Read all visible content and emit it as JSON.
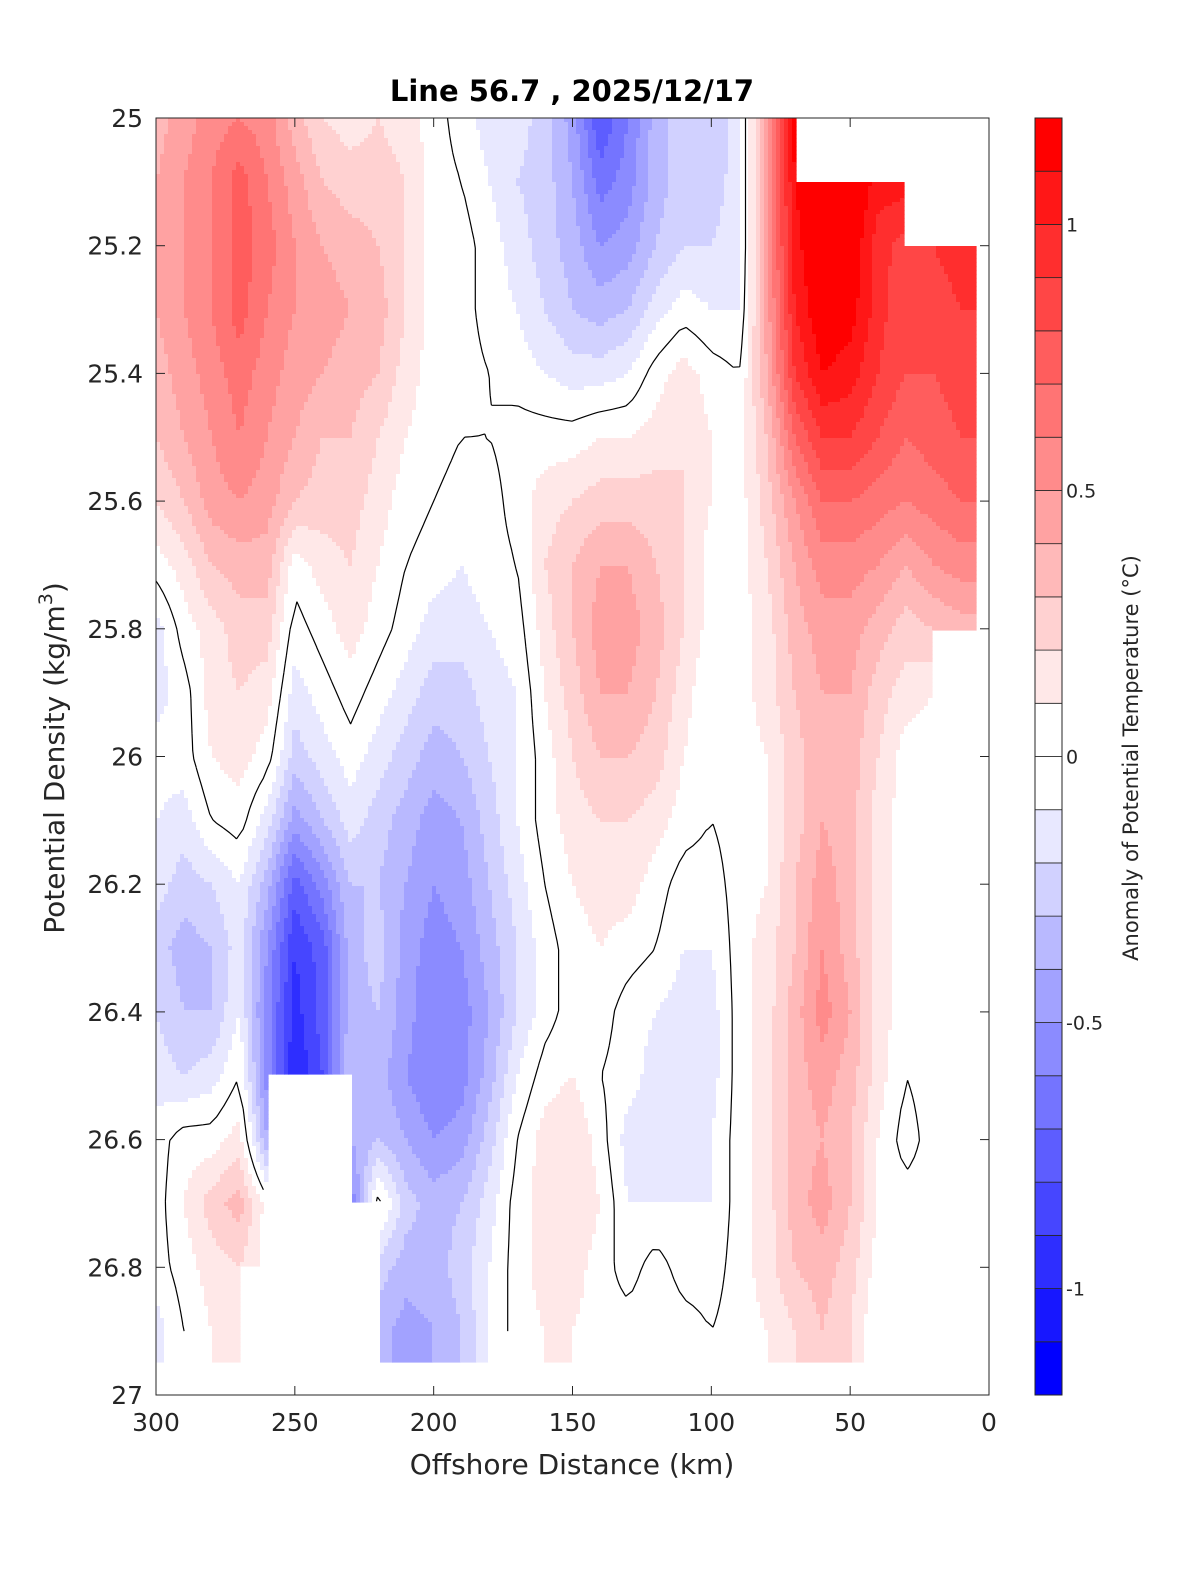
{
  "chart_data": {
    "type": "heatmap",
    "subtype": "filled-contour",
    "title": "Line 56.7 , 2025/12/17",
    "xlabel": "Offshore Distance (km)",
    "ylabel": "Potential Density (kg/m",
    "ylabel_superscript": "3",
    "ylabel_suffix": ")",
    "xlim": [
      300,
      0
    ],
    "ylim": [
      27,
      25
    ],
    "xticks": [
      "300",
      "250",
      "200",
      "150",
      "100",
      "50",
      "0"
    ],
    "xtick_values": [
      300,
      250,
      200,
      150,
      100,
      50,
      0
    ],
    "yticks": [
      "25",
      "25.2",
      "25.4",
      "25.6",
      "25.8",
      "26",
      "26.2",
      "26.4",
      "26.6",
      "26.8",
      "27"
    ],
    "ytick_values": [
      25,
      25.2,
      25.4,
      25.6,
      25.8,
      26,
      26.2,
      26.4,
      26.6,
      26.8,
      27
    ],
    "colorbar": {
      "label": "Anomaly of Potential Temperature (°C)",
      "range": [
        -1.2,
        1.2
      ],
      "level_step": 0.1,
      "ticks": [
        "1",
        "0.5",
        "0",
        "-0.5",
        "-1"
      ],
      "tick_values": [
        1,
        0.5,
        0,
        -0.5,
        -1
      ],
      "min_color": "#0000ff",
      "mid_color": "#ffffff",
      "max_color": "#ff0000"
    },
    "contour_levels": [
      0
    ],
    "contour_color": "#000000",
    "x": [
      300,
      290,
      280,
      270,
      260,
      250,
      240,
      230,
      220,
      210,
      200,
      190,
      180,
      170,
      160,
      150,
      140,
      130,
      120,
      110,
      100,
      90,
      80,
      70,
      60,
      50,
      40,
      30,
      20,
      10
    ],
    "y": [
      25.0,
      25.1,
      25.2,
      25.3,
      25.4,
      25.5,
      25.6,
      25.7,
      25.8,
      25.9,
      26.0,
      26.1,
      26.2,
      26.3,
      26.4,
      26.5,
      26.6,
      26.7,
      26.8,
      26.9
    ],
    "z_by_x": [
      [
        0.35,
        0.4,
        0.4,
        0.4,
        0.35,
        0.3,
        0.2,
        0.05,
        -0.15,
        -0.15,
        -0.05,
        -0.1,
        -0.15,
        -0.25,
        -0.2,
        -0.15,
        -0.05,
        -0.05,
        -0.05,
        -0.15
      ],
      [
        0.45,
        0.5,
        0.5,
        0.5,
        0.45,
        0.4,
        0.3,
        0.15,
        0.05,
        -0.05,
        -0.05,
        -0.15,
        -0.25,
        -0.35,
        -0.3,
        -0.2,
        0.05,
        0.1,
        0.05,
        0.0
      ],
      [
        0.55,
        0.6,
        0.6,
        0.6,
        0.55,
        0.5,
        0.45,
        0.3,
        0.15,
        0.15,
        0.1,
        0.0,
        -0.2,
        -0.3,
        -0.3,
        -0.15,
        0.05,
        0.25,
        0.15,
        0.1
      ],
      [
        0.6,
        0.75,
        0.75,
        0.75,
        0.65,
        0.6,
        0.5,
        0.35,
        0.25,
        0.2,
        0.15,
        0.05,
        -0.1,
        -0.15,
        -0.1,
        0.0,
        0.15,
        0.35,
        0.2,
        0.15
      ],
      [
        0.55,
        0.6,
        0.65,
        0.6,
        0.55,
        0.5,
        0.45,
        0.35,
        0.25,
        0.15,
        0.05,
        -0.15,
        -0.35,
        -0.5,
        -0.55,
        -0.55,
        -0.4,
        0.05,
        0.05,
        null
      ],
      [
        0.35,
        0.45,
        0.5,
        0.5,
        0.45,
        0.4,
        0.3,
        0.05,
        -0.05,
        -0.15,
        -0.25,
        -0.45,
        -0.75,
        -0.9,
        -0.95,
        -1.0,
        null,
        null,
        null,
        null
      ],
      [
        0.2,
        0.3,
        0.4,
        0.45,
        0.4,
        0.3,
        0.25,
        0.15,
        0.05,
        -0.05,
        -0.15,
        -0.3,
        -0.55,
        -0.75,
        -0.75,
        -0.8,
        null,
        null,
        null,
        null
      ],
      [
        0.15,
        0.25,
        0.35,
        0.4,
        0.35,
        0.3,
        0.25,
        0.2,
        0.15,
        0.05,
        -0.05,
        -0.15,
        -0.3,
        -0.35,
        -0.35,
        -0.3,
        -0.4,
        -0.6,
        null,
        null
      ],
      [
        0.2,
        0.25,
        0.3,
        0.35,
        0.3,
        0.2,
        0.15,
        0.1,
        0.05,
        -0.05,
        -0.15,
        -0.25,
        -0.3,
        -0.25,
        -0.3,
        -0.35,
        -0.3,
        0.05,
        -0.25,
        -0.35
      ],
      [
        0.15,
        0.2,
        0.2,
        0.2,
        0.15,
        0.1,
        0.05,
        0.0,
        -0.05,
        -0.15,
        -0.25,
        -0.35,
        -0.4,
        -0.45,
        -0.45,
        -0.5,
        -0.4,
        -0.25,
        -0.35,
        -0.45
      ],
      [
        0.05,
        0.05,
        0.05,
        0.05,
        0.05,
        0.05,
        0.0,
        -0.05,
        -0.15,
        -0.25,
        -0.35,
        -0.45,
        -0.5,
        -0.55,
        -0.6,
        -0.6,
        -0.5,
        -0.35,
        -0.35,
        -0.4
      ],
      [
        -0.05,
        0.0,
        0.05,
        0.05,
        0.05,
        0.0,
        -0.05,
        -0.1,
        -0.15,
        -0.25,
        -0.3,
        -0.4,
        -0.45,
        -0.5,
        -0.55,
        -0.55,
        -0.45,
        -0.3,
        -0.25,
        -0.3
      ],
      [
        -0.15,
        -0.1,
        -0.05,
        -0.05,
        0.0,
        0.0,
        -0.05,
        -0.05,
        -0.1,
        -0.15,
        -0.2,
        -0.25,
        -0.3,
        -0.35,
        -0.4,
        -0.35,
        -0.25,
        -0.15,
        -0.1,
        -0.1
      ],
      [
        -0.15,
        -0.2,
        -0.15,
        -0.1,
        -0.05,
        0.05,
        0.05,
        0.0,
        -0.05,
        -0.1,
        -0.1,
        -0.1,
        -0.15,
        -0.2,
        -0.2,
        -0.1,
        0.0,
        0.05,
        0.05,
        0.05
      ],
      [
        -0.25,
        -0.25,
        -0.25,
        -0.2,
        -0.1,
        0.05,
        0.15,
        0.2,
        0.15,
        0.1,
        0.05,
        0.05,
        0.0,
        -0.05,
        -0.05,
        0.05,
        0.15,
        0.15,
        0.15,
        0.1
      ],
      [
        -0.45,
        -0.4,
        -0.35,
        -0.3,
        -0.15,
        0.05,
        0.2,
        0.3,
        0.3,
        0.25,
        0.2,
        0.15,
        0.1,
        0.05,
        0.05,
        0.1,
        0.2,
        0.2,
        0.15,
        0.1
      ],
      [
        -0.8,
        -0.65,
        -0.5,
        -0.35,
        -0.15,
        0.1,
        0.25,
        0.4,
        0.45,
        0.4,
        0.3,
        0.2,
        0.15,
        0.1,
        0.05,
        0.0,
        0.05,
        0.1,
        0.05,
        0.05
      ],
      [
        -0.6,
        -0.55,
        -0.45,
        -0.3,
        -0.1,
        0.1,
        0.25,
        0.4,
        0.45,
        0.4,
        0.3,
        0.2,
        0.15,
        0.05,
        -0.05,
        -0.05,
        -0.15,
        -0.1,
        -0.05,
        0.05
      ],
      [
        -0.35,
        -0.35,
        -0.3,
        -0.15,
        0.05,
        0.15,
        0.25,
        0.3,
        0.35,
        0.3,
        0.25,
        0.15,
        0.05,
        0.0,
        -0.1,
        -0.15,
        -0.15,
        -0.1,
        0.05,
        0.1
      ],
      [
        -0.25,
        -0.25,
        -0.2,
        -0.05,
        0.15,
        0.2,
        0.2,
        0.2,
        0.2,
        0.15,
        0.1,
        0.05,
        -0.05,
        -0.1,
        -0.15,
        -0.2,
        -0.15,
        -0.1,
        -0.05,
        0.05
      ],
      [
        -0.3,
        -0.25,
        -0.2,
        -0.1,
        0.05,
        0.1,
        0.1,
        0.05,
        0.05,
        0.0,
        0.0,
        0.0,
        -0.05,
        -0.1,
        -0.15,
        -0.15,
        -0.1,
        -0.1,
        -0.05,
        0.0
      ],
      [
        -0.15,
        -0.15,
        -0.15,
        -0.1,
        0.0,
        0.05,
        0.05,
        0.05,
        0.05,
        0.05,
        0.05,
        0.05,
        0.05,
        0.05,
        0.05,
        0.05,
        0.05,
        0.05,
        0.05,
        0.05
      ],
      [
        0.5,
        0.5,
        0.5,
        0.45,
        0.4,
        0.3,
        0.25,
        0.2,
        0.15,
        0.15,
        0.1,
        0.1,
        0.1,
        0.15,
        0.15,
        0.15,
        0.15,
        0.15,
        0.15,
        0.1
      ],
      [
        1.15,
        1.1,
        1.05,
        1.0,
        0.9,
        0.7,
        0.5,
        0.4,
        0.35,
        0.3,
        0.25,
        0.25,
        0.3,
        0.3,
        0.35,
        0.35,
        0.35,
        0.35,
        0.3,
        0.2
      ],
      [
        null,
        1.25,
        1.25,
        1.2,
        1.1,
        0.9,
        0.7,
        0.55,
        0.45,
        0.4,
        0.4,
        0.4,
        0.45,
        0.5,
        0.55,
        0.45,
        0.4,
        0.45,
        0.35,
        0.3
      ],
      [
        null,
        1.25,
        1.2,
        1.15,
        1.05,
        0.9,
        0.7,
        0.55,
        0.45,
        0.4,
        0.35,
        0.35,
        0.35,
        0.35,
        0.4,
        0.35,
        0.3,
        0.3,
        0.25,
        0.2
      ],
      [
        null,
        1.05,
        0.95,
        0.95,
        0.9,
        0.8,
        0.65,
        0.5,
        0.35,
        0.25,
        0.2,
        0.15,
        0.15,
        0.15,
        0.15,
        0.15,
        0.1,
        0.1,
        0.05,
        0.0
      ],
      [
        null,
        1.05,
        0.85,
        0.8,
        0.8,
        0.7,
        0.6,
        0.4,
        0.25,
        0.15,
        0.05,
        0.05,
        0.05,
        0.05,
        0.05,
        0.0,
        -0.05,
        0.05,
        0.05,
        null
      ],
      [
        null,
        null,
        0.9,
        0.85,
        0.8,
        0.75,
        0.65,
        0.5,
        0.3,
        0.1,
        0.05,
        0.05,
        0.05,
        0.05,
        0.05,
        0.05,
        0.05,
        0.05,
        null,
        null
      ],
      [
        null,
        null,
        0.95,
        0.9,
        0.85,
        0.8,
        0.7,
        0.55,
        0.35,
        null,
        null,
        null,
        null,
        null,
        null,
        null,
        null,
        null,
        null,
        null
      ]
    ]
  }
}
